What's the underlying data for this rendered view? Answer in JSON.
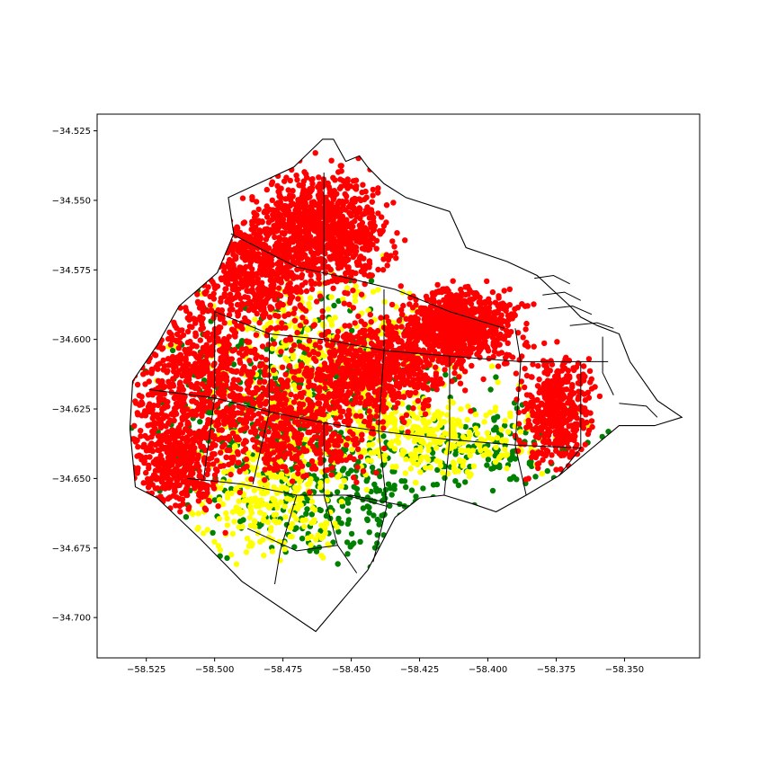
{
  "chart_data": {
    "type": "scatter",
    "title": "",
    "xlabel": "",
    "ylabel": "",
    "xlim": [
      -58.543,
      -58.3225
    ],
    "ylim": [
      -34.7145,
      -34.519
    ],
    "x_ticks": [
      -58.525,
      -58.5,
      -58.475,
      -58.45,
      -58.425,
      -58.4,
      -58.375,
      -58.35
    ],
    "y_ticks": [
      -34.525,
      -34.55,
      -34.575,
      -34.6,
      -34.625,
      -34.65,
      -34.675,
      -34.7
    ],
    "x_tick_labels": [
      "−58.525",
      "−58.500",
      "−58.475",
      "−58.450",
      "−58.425",
      "−58.400",
      "−58.375",
      "−58.350"
    ],
    "y_tick_labels": [
      "−34.525",
      "−34.550",
      "−34.575",
      "−34.600",
      "−34.625",
      "−34.650",
      "−34.675",
      "−34.700"
    ],
    "grid": false,
    "legend": "none",
    "colors": {
      "red": "#ff0000",
      "yellow": "#ffff00",
      "green": "#008000",
      "boundary": "#000000"
    },
    "city_boundary": [
      [
        -58.4605,
        -34.528
      ],
      [
        -58.4565,
        -34.528
      ],
      [
        -58.452,
        -34.536
      ],
      [
        -58.447,
        -34.534
      ],
      [
        -58.444,
        -34.538
      ],
      [
        -58.438,
        -34.544
      ],
      [
        -58.43,
        -34.549
      ],
      [
        -58.414,
        -34.554
      ],
      [
        -58.408,
        -34.567
      ],
      [
        -58.393,
        -34.572
      ],
      [
        -58.382,
        -34.577
      ],
      [
        -58.37,
        -34.588
      ],
      [
        -58.366,
        -34.592
      ],
      [
        -58.36,
        -34.595
      ],
      [
        -58.352,
        -34.598
      ],
      [
        -58.348,
        -34.608
      ],
      [
        -58.338,
        -34.622
      ],
      [
        -58.329,
        -34.628
      ],
      [
        -58.339,
        -34.631
      ],
      [
        -58.352,
        -34.631
      ],
      [
        -58.363,
        -34.64
      ],
      [
        -58.374,
        -34.649
      ],
      [
        -58.386,
        -34.656
      ],
      [
        -58.397,
        -34.662
      ],
      [
        -58.406,
        -34.659
      ],
      [
        -58.416,
        -34.656
      ],
      [
        -58.425,
        -34.657
      ],
      [
        -58.434,
        -34.664
      ],
      [
        -58.444,
        -34.683
      ],
      [
        -58.463,
        -34.705
      ],
      [
        -58.49,
        -34.687
      ],
      [
        -58.505,
        -34.672
      ],
      [
        -58.521,
        -34.657
      ],
      [
        -58.529,
        -34.653
      ],
      [
        -58.531,
        -34.632
      ],
      [
        -58.53,
        -34.615
      ],
      [
        -58.521,
        -34.602
      ],
      [
        -58.513,
        -34.588
      ],
      [
        -58.499,
        -34.576
      ],
      [
        -58.493,
        -34.562
      ],
      [
        -58.495,
        -34.549
      ],
      [
        -58.471,
        -34.538
      ],
      [
        -58.4605,
        -34.528
      ]
    ],
    "barrio_lines": [
      [
        [
          -58.494,
          -34.562
        ],
        [
          -58.47,
          -34.574
        ],
        [
          -58.451,
          -34.578
        ],
        [
          -58.434,
          -34.582
        ],
        [
          -58.414,
          -34.59
        ],
        [
          -58.394,
          -34.596
        ]
      ],
      [
        [
          -58.5,
          -34.59
        ],
        [
          -58.48,
          -34.598
        ],
        [
          -58.46,
          -34.6
        ],
        [
          -58.438,
          -34.604
        ],
        [
          -58.414,
          -34.606
        ],
        [
          -58.388,
          -34.608
        ],
        [
          -58.356,
          -34.608
        ]
      ],
      [
        [
          -58.524,
          -34.618
        ],
        [
          -58.5,
          -34.621
        ],
        [
          -58.48,
          -34.626
        ],
        [
          -58.46,
          -34.63
        ],
        [
          -58.44,
          -34.633
        ],
        [
          -58.414,
          -34.636
        ],
        [
          -58.39,
          -34.638
        ],
        [
          -58.366,
          -34.639
        ]
      ],
      [
        [
          -58.51,
          -34.65
        ],
        [
          -58.49,
          -34.652
        ],
        [
          -58.47,
          -34.656
        ],
        [
          -58.45,
          -34.656
        ],
        [
          -58.43,
          -34.66
        ]
      ],
      [
        [
          -58.47,
          -34.656
        ],
        [
          -58.476,
          -34.676
        ],
        [
          -58.478,
          -34.688
        ]
      ],
      [
        [
          -58.46,
          -34.63
        ],
        [
          -58.46,
          -34.656
        ],
        [
          -58.455,
          -34.674
        ],
        [
          -58.448,
          -34.684
        ]
      ],
      [
        [
          -58.44,
          -34.633
        ],
        [
          -58.437,
          -34.66
        ],
        [
          -58.442,
          -34.68
        ]
      ],
      [
        [
          -58.414,
          -34.606
        ],
        [
          -58.414,
          -34.636
        ],
        [
          -58.416,
          -34.656
        ]
      ],
      [
        [
          -58.438,
          -34.582
        ],
        [
          -58.438,
          -34.604
        ],
        [
          -58.44,
          -34.633
        ]
      ],
      [
        [
          -58.48,
          -34.598
        ],
        [
          -58.48,
          -34.626
        ],
        [
          -58.486,
          -34.652
        ]
      ],
      [
        [
          -58.5,
          -34.59
        ],
        [
          -58.5,
          -34.621
        ],
        [
          -58.504,
          -34.65
        ]
      ],
      [
        [
          -58.46,
          -34.54
        ],
        [
          -58.46,
          -34.578
        ],
        [
          -58.46,
          -34.6
        ]
      ],
      [
        [
          -58.39,
          -34.596
        ],
        [
          -58.388,
          -34.608
        ],
        [
          -58.39,
          -34.638
        ],
        [
          -58.386,
          -34.656
        ]
      ],
      [
        [
          -58.366,
          -34.608
        ],
        [
          -58.366,
          -34.639
        ],
        [
          -58.374,
          -34.649
        ]
      ],
      [
        [
          -58.452,
          -34.656
        ],
        [
          -58.437,
          -34.66
        ]
      ],
      [
        [
          -58.488,
          -34.668
        ],
        [
          -58.47,
          -34.676
        ],
        [
          -58.455,
          -34.674
        ]
      ]
    ],
    "port_lines": [
      [
        [
          -58.383,
          -34.578
        ],
        [
          -58.376,
          -34.577
        ],
        [
          -58.37,
          -34.58
        ]
      ],
      [
        [
          -58.38,
          -34.584
        ],
        [
          -58.372,
          -34.583
        ],
        [
          -58.366,
          -34.586
        ]
      ],
      [
        [
          -58.378,
          -34.589
        ],
        [
          -58.369,
          -34.588
        ],
        [
          -58.362,
          -34.591
        ]
      ],
      [
        [
          -58.37,
          -34.595
        ],
        [
          -58.36,
          -34.594
        ],
        [
          -58.354,
          -34.596
        ]
      ],
      [
        [
          -58.358,
          -34.599
        ],
        [
          -58.358,
          -34.612
        ],
        [
          -58.354,
          -34.62
        ]
      ],
      [
        [
          -58.352,
          -34.623
        ],
        [
          -58.342,
          -34.624
        ],
        [
          -58.338,
          -34.628
        ]
      ]
    ],
    "point_clusters": [
      {
        "color": "red",
        "cx": -58.46,
        "cy": -34.56,
        "sx": 0.012,
        "sy": 0.011,
        "n": 900
      },
      {
        "color": "red",
        "cx": -58.41,
        "cy": -34.595,
        "sx": 0.011,
        "sy": 0.007,
        "n": 800
      },
      {
        "color": "red",
        "cx": -58.44,
        "cy": -34.61,
        "sx": 0.015,
        "sy": 0.009,
        "n": 700
      },
      {
        "color": "red",
        "cx": -58.485,
        "cy": -34.575,
        "sx": 0.012,
        "sy": 0.012,
        "n": 600
      },
      {
        "color": "red",
        "cx": -58.505,
        "cy": -34.615,
        "sx": 0.014,
        "sy": 0.015,
        "n": 700
      },
      {
        "color": "red",
        "cx": -58.375,
        "cy": -34.625,
        "sx": 0.007,
        "sy": 0.011,
        "n": 450
      },
      {
        "color": "red",
        "cx": -58.47,
        "cy": -34.63,
        "sx": 0.016,
        "sy": 0.011,
        "n": 500
      },
      {
        "color": "red",
        "cx": -58.515,
        "cy": -34.645,
        "sx": 0.009,
        "sy": 0.009,
        "n": 400
      },
      {
        "color": "yellow",
        "cx": -58.46,
        "cy": -34.61,
        "sx": 0.025,
        "sy": 0.018,
        "n": 500
      },
      {
        "color": "yellow",
        "cx": -58.48,
        "cy": -34.655,
        "sx": 0.015,
        "sy": 0.013,
        "n": 300
      },
      {
        "color": "yellow",
        "cx": -58.42,
        "cy": -34.635,
        "sx": 0.022,
        "sy": 0.008,
        "n": 300
      },
      {
        "color": "green",
        "cx": -58.47,
        "cy": -34.63,
        "sx": 0.028,
        "sy": 0.023,
        "n": 500
      },
      {
        "color": "green",
        "cx": -58.45,
        "cy": -34.66,
        "sx": 0.02,
        "sy": 0.013,
        "n": 150
      },
      {
        "color": "green",
        "cx": -58.4,
        "cy": -34.64,
        "sx": 0.024,
        "sy": 0.01,
        "n": 150
      }
    ]
  }
}
